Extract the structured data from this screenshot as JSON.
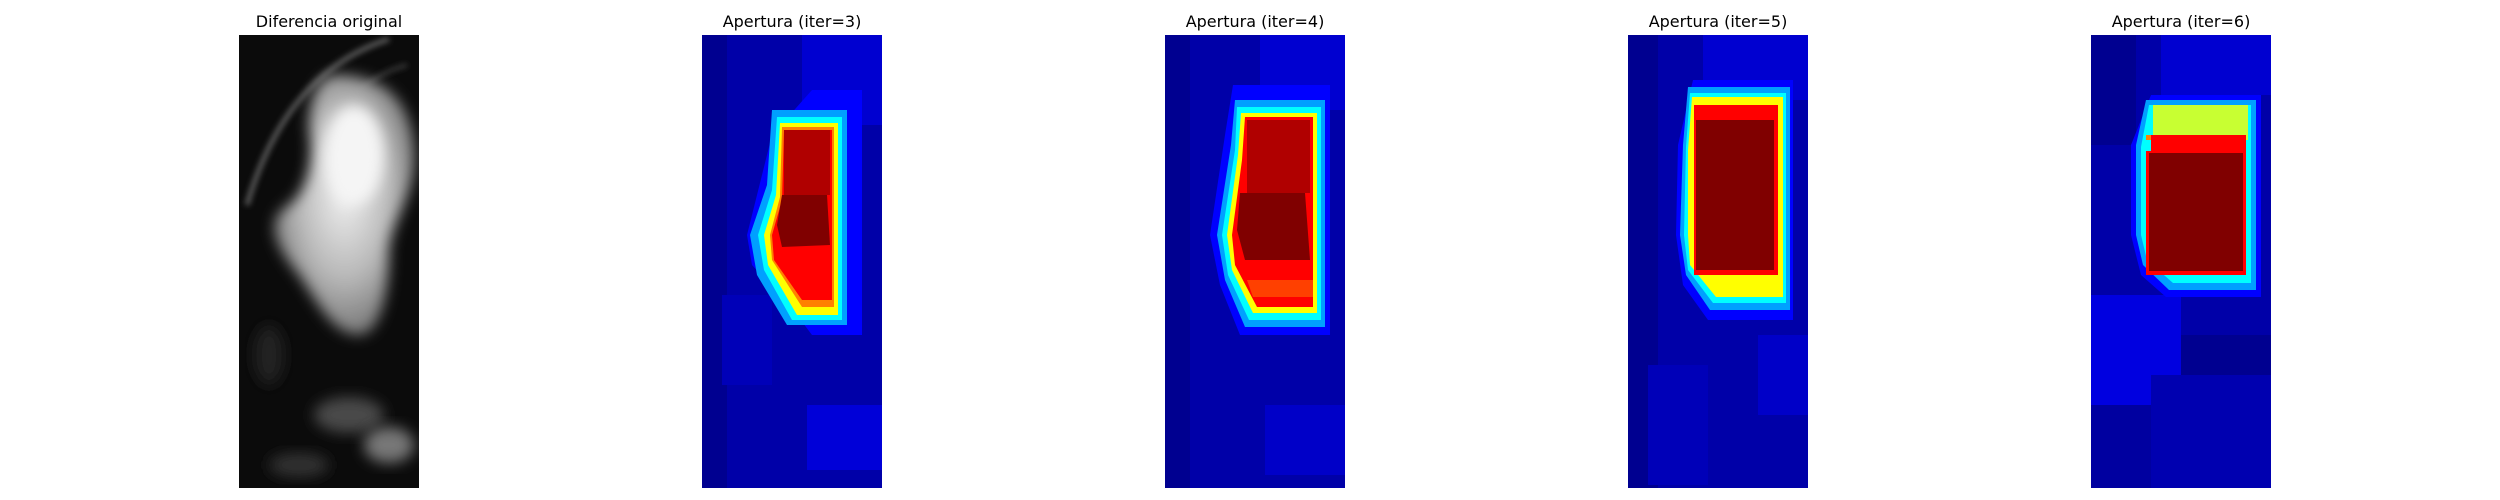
{
  "panels": [
    {
      "title": "Diferencia original",
      "colormap": "gray"
    },
    {
      "title": "Apertura (iter=3)",
      "colormap": "jet"
    },
    {
      "title": "Apertura (iter=4)",
      "colormap": "jet"
    },
    {
      "title": "Apertura (iter=5)",
      "colormap": "jet"
    },
    {
      "title": "Apertura (iter=6)",
      "colormap": "jet"
    }
  ]
}
